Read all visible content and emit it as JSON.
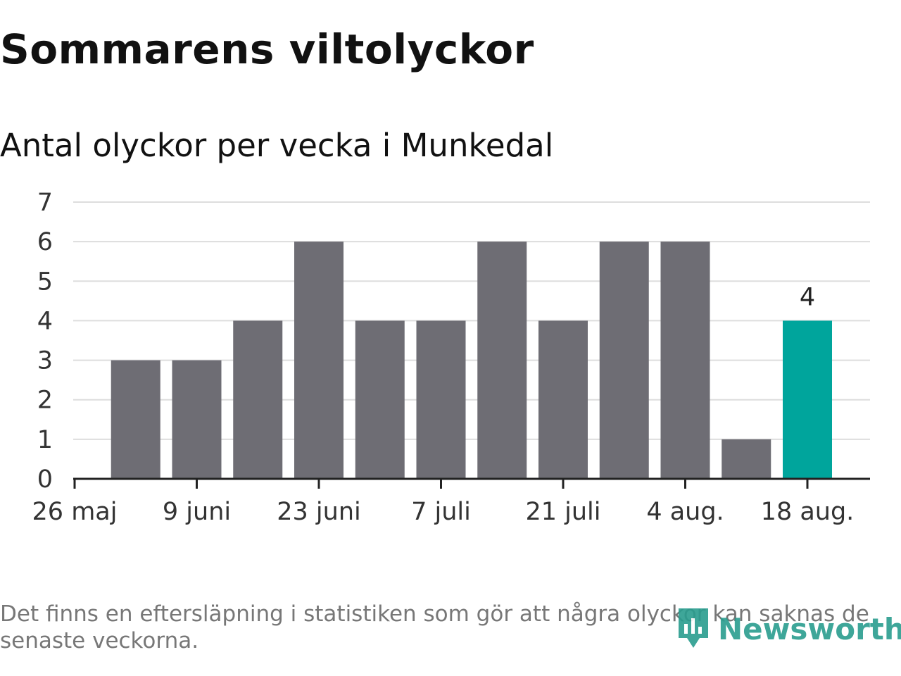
{
  "header": {
    "title": "Sommarens viltolyckor",
    "subtitle": "Antal olyckor per vecka i Munkedal"
  },
  "footnote": "Det finns en eftersläpning i statistiken som gör att några olyckor kan saknas de senaste veckorna.",
  "logo": {
    "text": "Newsworthy"
  },
  "colors": {
    "bar": "#6e6d74",
    "highlight": "#00a59c",
    "grid": "#dddddd",
    "axis": "#222222"
  },
  "chart_data": {
    "type": "bar",
    "title": "Antal olyckor per vecka i Munkedal",
    "xlabel": "",
    "ylabel": "",
    "ylim": [
      0,
      7
    ],
    "yticks": [
      0,
      1,
      2,
      3,
      4,
      5,
      6,
      7
    ],
    "xtick_labels": [
      "26 maj",
      "9 juni",
      "23 juni",
      "7 juli",
      "21 juli",
      "4 aug.",
      "18 aug."
    ],
    "categories": [
      "26 maj",
      "2 juni",
      "9 juni",
      "16 juni",
      "23 juni",
      "30 juni",
      "7 juli",
      "14 juli",
      "21 juli",
      "28 juli",
      "4 aug.",
      "11 aug.",
      "18 aug."
    ],
    "values": [
      null,
      3,
      3,
      4,
      6,
      4,
      4,
      6,
      4,
      6,
      6,
      1,
      4
    ],
    "highlight_index": 12,
    "data_labels": [
      {
        "index": 12,
        "text": "4"
      }
    ],
    "grid": true
  }
}
